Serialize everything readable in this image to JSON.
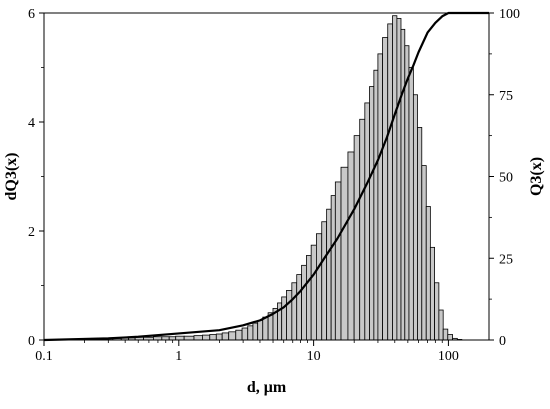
{
  "chart_data": {
    "type": "bar",
    "title": "",
    "xlabel": "d, μm",
    "ylabel": "dQ3(x)",
    "y2label": "Q3(x)",
    "xscale": "log",
    "xlim": [
      0.1,
      200
    ],
    "ylim": [
      0,
      6
    ],
    "y2lim": [
      0,
      100
    ],
    "grid": false,
    "legend": "none",
    "x_ticks": [
      {
        "value": 0.1,
        "label": "0.1"
      },
      {
        "value": 1,
        "label": "1"
      },
      {
        "value": 10,
        "label": "10"
      },
      {
        "value": 100,
        "label": "100"
      }
    ],
    "y_ticks": [
      {
        "value": 0,
        "label": "0"
      },
      {
        "value": 2,
        "label": "2"
      },
      {
        "value": 4,
        "label": "4"
      },
      {
        "value": 6,
        "label": "6"
      }
    ],
    "y2_ticks": [
      {
        "value": 0,
        "label": "0"
      },
      {
        "value": 25,
        "label": "25"
      },
      {
        "value": 50,
        "label": "50"
      },
      {
        "value": 75,
        "label": "75"
      },
      {
        "value": 100,
        "label": "100"
      }
    ],
    "bar_fill": "#c8c8c8",
    "bar_stroke": "#000000",
    "line_color": "#000000",
    "histogram": {
      "bins_d_um": [
        0.15,
        0.2,
        0.25,
        0.3,
        0.35,
        0.4,
        0.45,
        0.5,
        0.6,
        0.7,
        0.8,
        0.9,
        1.0,
        1.2,
        1.4,
        1.6,
        1.8,
        2.0,
        2.2,
        2.5,
        2.8,
        3.1,
        3.4,
        3.7,
        4.0,
        4.4,
        4.8,
        5.2,
        5.6,
        6.0,
        6.6,
        7.2,
        7.8,
        8.5,
        9.2,
        10,
        11,
        12,
        13,
        14,
        15,
        17,
        19,
        21,
        23,
        25,
        27,
        29,
        31,
        34,
        37,
        40,
        43,
        46,
        49,
        53,
        57,
        61,
        66,
        71,
        76,
        82,
        88,
        95,
        103,
        112,
        121
      ],
      "dQ3": [
        0.02,
        0.02,
        0.03,
        0.03,
        0.03,
        0.04,
        0.04,
        0.05,
        0.05,
        0.06,
        0.06,
        0.06,
        0.07,
        0.07,
        0.08,
        0.09,
        0.1,
        0.11,
        0.13,
        0.15,
        0.18,
        0.22,
        0.26,
        0.31,
        0.36,
        0.42,
        0.5,
        0.58,
        0.68,
        0.79,
        0.91,
        1.05,
        1.2,
        1.37,
        1.55,
        1.74,
        1.95,
        2.17,
        2.4,
        2.65,
        2.9,
        3.17,
        3.45,
        3.75,
        4.05,
        4.35,
        4.65,
        4.95,
        5.25,
        5.55,
        5.8,
        5.95,
        5.9,
        5.7,
        5.4,
        5.0,
        4.5,
        3.9,
        3.2,
        2.45,
        1.7,
        1.05,
        0.55,
        0.2,
        0.1,
        0.03,
        0.01
      ]
    },
    "cumulative": {
      "name": "Q3(x)",
      "d_um": [
        0.1,
        0.3,
        0.5,
        1,
        2,
        3,
        4,
        5,
        6,
        7,
        8,
        10,
        12,
        15,
        20,
        25,
        30,
        35,
        40,
        45,
        50,
        55,
        60,
        70,
        80,
        90,
        100,
        110,
        200
      ],
      "Q3": [
        0,
        0.5,
        1,
        2,
        3,
        4.5,
        6,
        8,
        10,
        12.5,
        15,
        20,
        25,
        31,
        40,
        48,
        55,
        62,
        69,
        75,
        80,
        84,
        88,
        94,
        97,
        99,
        100,
        100,
        100
      ]
    }
  }
}
